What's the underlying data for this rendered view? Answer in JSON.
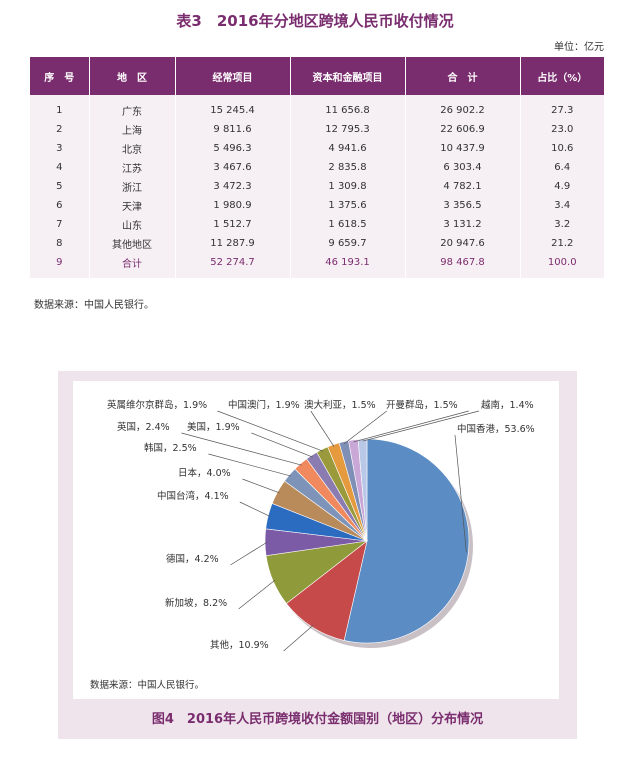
{
  "table": {
    "title": "表3　2016年分地区跨境人民币收付情况",
    "unit": "单位：亿元",
    "headers": [
      "序　号",
      "地　区",
      "经常项目",
      "资本和金融项目",
      "合　计",
      "占比（%）"
    ],
    "rows": [
      [
        "1",
        "广东",
        "15 245.4",
        "11 656.8",
        "26 902.2",
        "27.3"
      ],
      [
        "2",
        "上海",
        "9 811.6",
        "12 795.3",
        "22 606.9",
        "23.0"
      ],
      [
        "3",
        "北京",
        "5 496.3",
        "4 941.6",
        "10 437.9",
        "10.6"
      ],
      [
        "4",
        "江苏",
        "3 467.6",
        "2 835.8",
        "6 303.4",
        "6.4"
      ],
      [
        "5",
        "浙江",
        "3 472.3",
        "1 309.8",
        "4 782.1",
        "4.9"
      ],
      [
        "6",
        "天津",
        "1 980.9",
        "1 375.6",
        "3 356.5",
        "3.4"
      ],
      [
        "7",
        "山东",
        "1 512.7",
        "1 618.5",
        "3 131.2",
        "3.2"
      ],
      [
        "8",
        "其他地区",
        "11 287.9",
        "9 659.7",
        "20 947.6",
        "21.2"
      ],
      [
        "9",
        "合计",
        "52 274.7",
        "46 193.1",
        "98 467.8",
        "100.0"
      ]
    ],
    "source": "数据来源：中国人民银行。"
  },
  "figure": {
    "title": "图4　2016年人民币跨境收付金额国别（地区）分布情况",
    "source": "数据来源：中国人民银行。"
  },
  "chart_data": {
    "type": "pie",
    "categories": [
      "中国香港",
      "其他",
      "新加坡",
      "德国",
      "中国台湾",
      "日本",
      "韩国",
      "英国",
      "美国",
      "英属维尔京群岛",
      "中国澳门",
      "澳大利亚",
      "开曼群岛",
      "越南"
    ],
    "values": [
      53.6,
      10.9,
      8.2,
      4.2,
      4.1,
      4.0,
      2.5,
      2.4,
      1.9,
      1.9,
      1.9,
      1.5,
      1.5,
      1.4
    ],
    "labels": [
      "中国香港，53.6%",
      "其他，10.9%",
      "新加坡，8.2%",
      "德国，4.2%",
      "中国台湾，4.1%",
      "日本，4.0%",
      "韩国，2.5%",
      "英国，2.4%",
      "美国，1.9%",
      "英属维尔京群岛，1.9%",
      "中国澳门，1.9%",
      "澳大利亚，1.5%",
      "开曼群岛，1.5%",
      "越南，1.4%"
    ],
    "colors": [
      "#5b8cc4",
      "#c74a4a",
      "#8f9a3a",
      "#7b5aa6",
      "#2b6cc0",
      "#b98a5a",
      "#7d93b8",
      "#f08a5e",
      "#8a7cb0",
      "#9a9a3c",
      "#e59a3e",
      "#7f8fb5",
      "#c9a8d8",
      "#b9c8e6"
    ],
    "title": "图4　2016年人民币跨境收付金额国别（地区）分布情况"
  }
}
